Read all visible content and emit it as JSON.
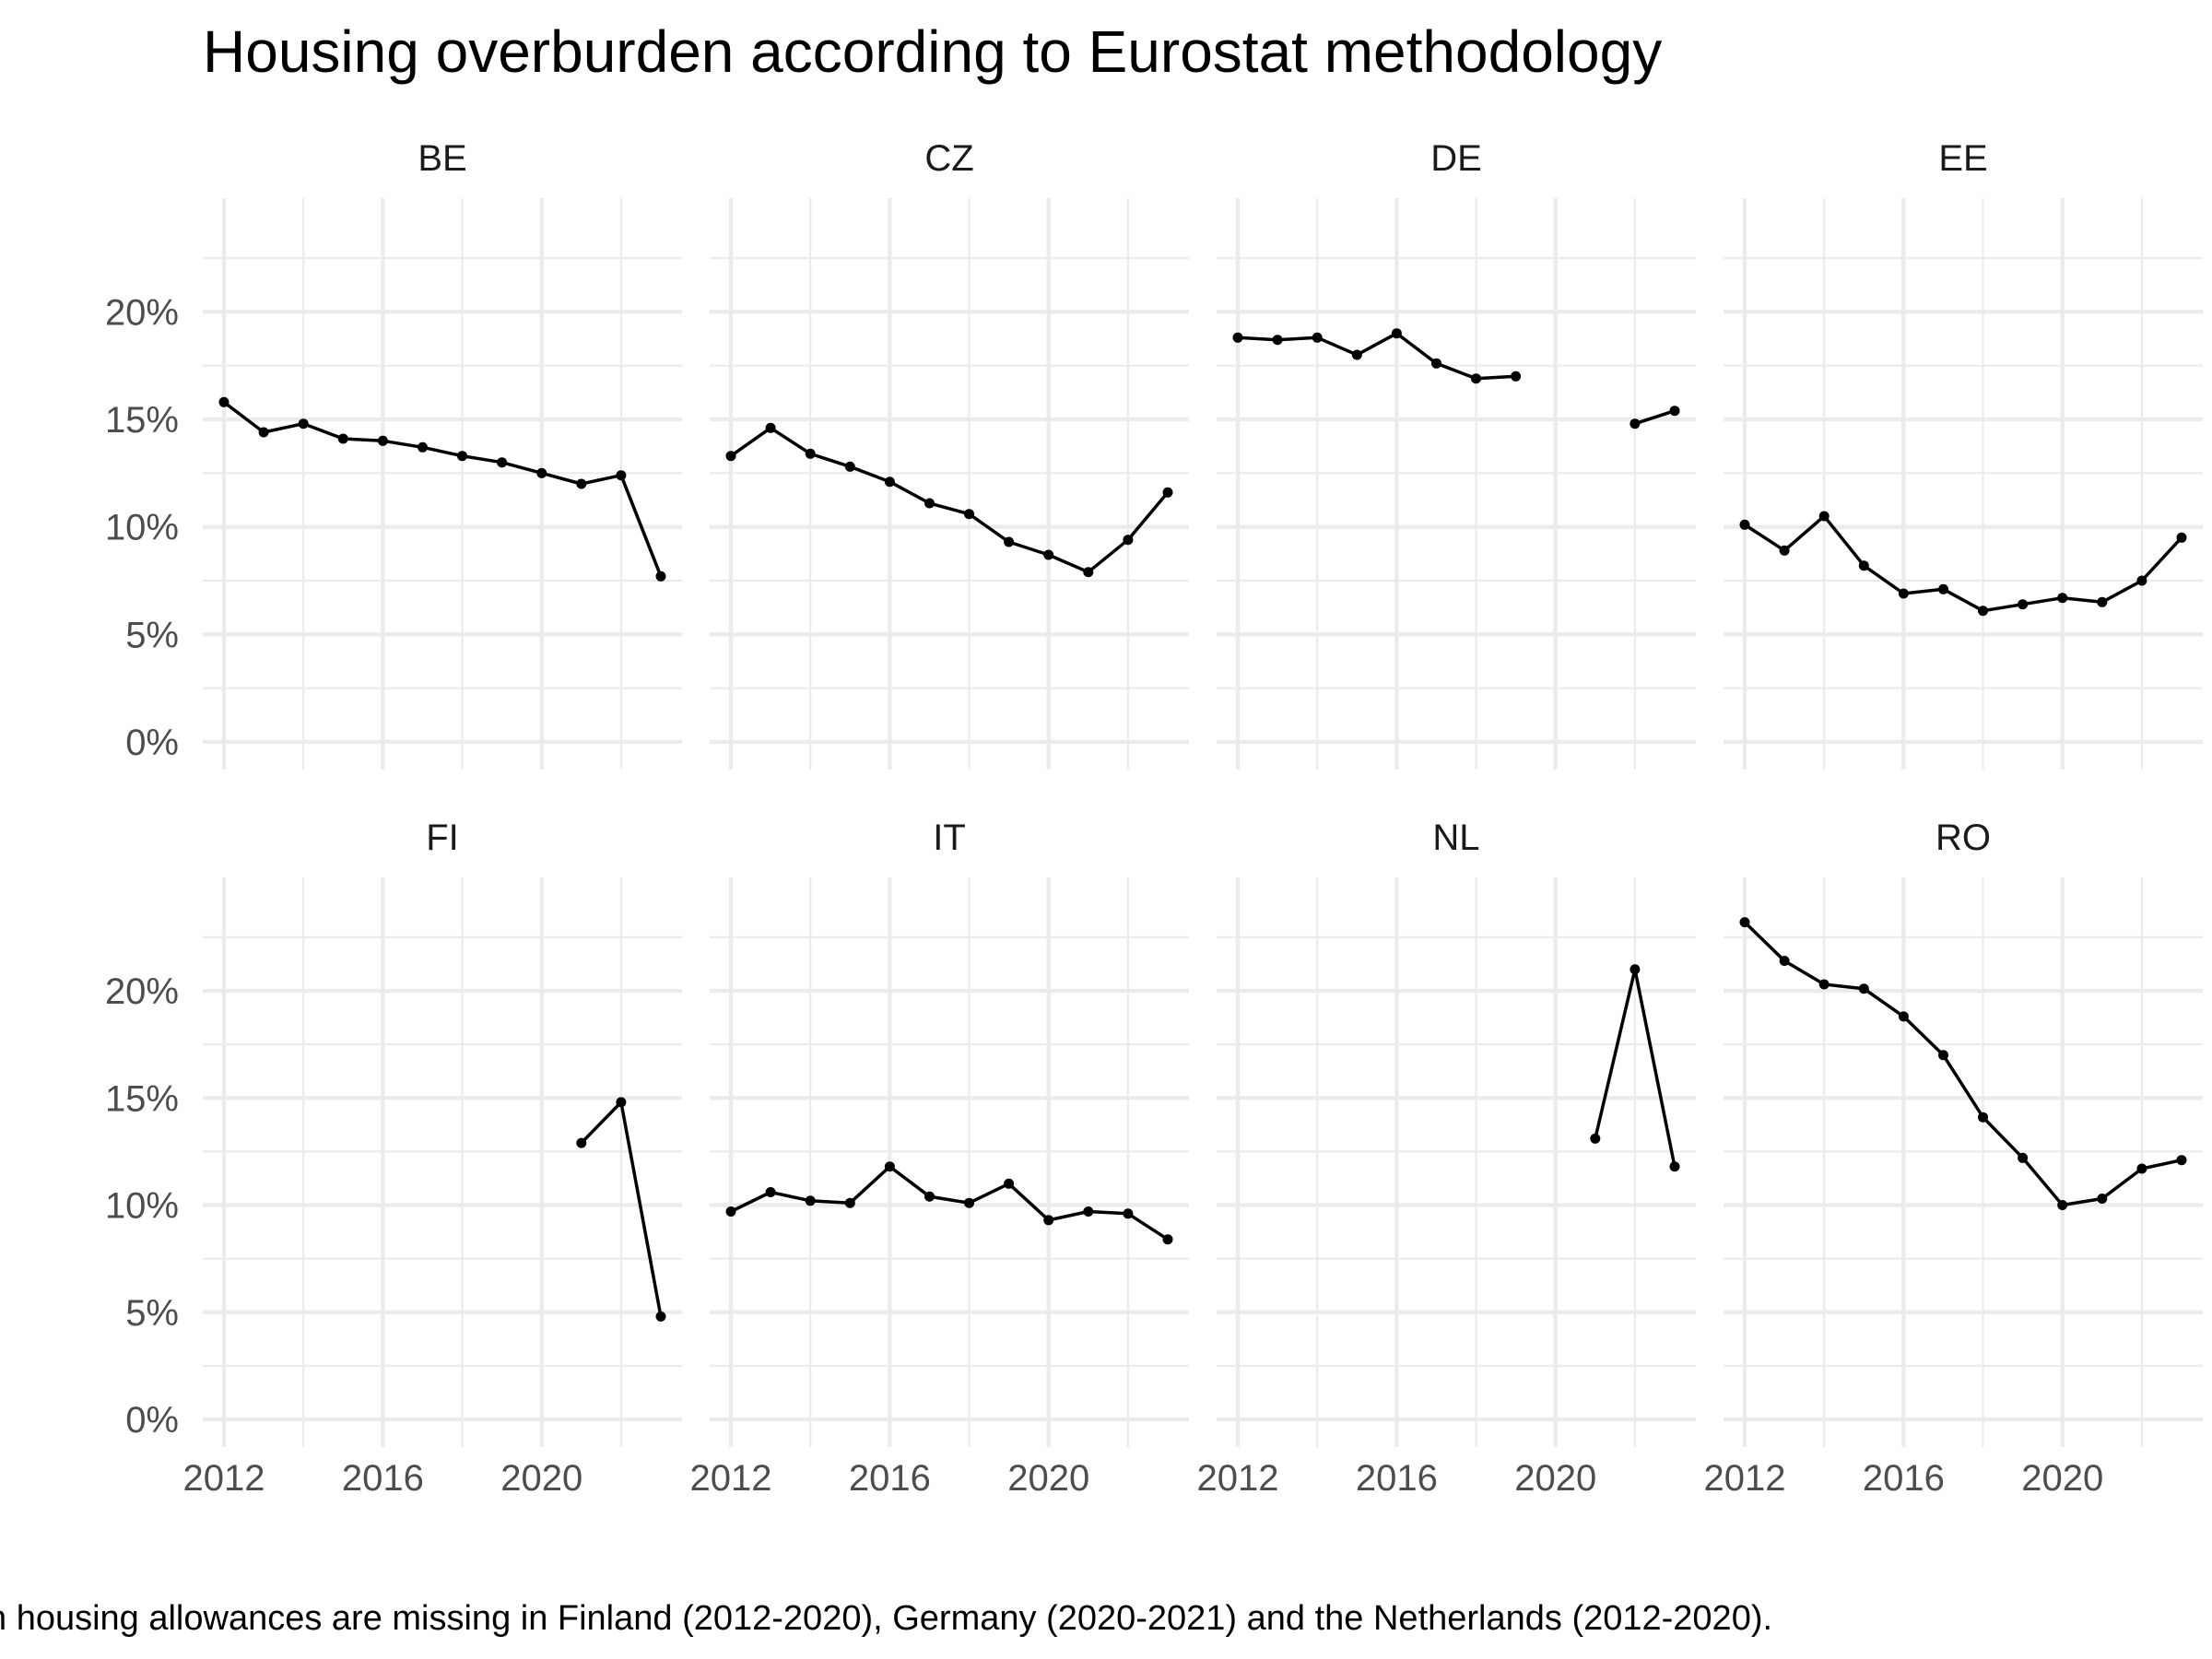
{
  "title": "Housing overburden according to Eurostat methodology",
  "caption": "n housing allowances are missing in Finland (2012-2020), Germany (2020-2021) and the Netherlands (2012-2020).",
  "colors": {
    "line": "#000000",
    "grid": "#ebebeb",
    "tick_text": "#4d4d4d"
  },
  "chart_data": {
    "type": "line",
    "layout": "facet-grid 2 rows x 4 columns, shared axes",
    "xlim": [
      2012,
      2023
    ],
    "ylim": [
      0,
      0.24
    ],
    "x_ticks": [
      2012,
      2016,
      2020
    ],
    "x_tick_labels": [
      "2012",
      "2016",
      "2020"
    ],
    "y_ticks": [
      0,
      0.05,
      0.1,
      0.15,
      0.2
    ],
    "y_tick_labels": [
      "0%",
      "5%",
      "10%",
      "15%",
      "20%"
    ],
    "grid": true,
    "panels": [
      {
        "name": "BE",
        "x": [
          2012,
          2013,
          2014,
          2015,
          2016,
          2017,
          2018,
          2019,
          2020,
          2021,
          2022,
          2023
        ],
        "y": [
          0.158,
          0.144,
          0.148,
          0.141,
          0.14,
          0.137,
          0.133,
          0.13,
          0.125,
          0.12,
          0.124,
          0.077
        ]
      },
      {
        "name": "CZ",
        "x": [
          2012,
          2013,
          2014,
          2015,
          2016,
          2017,
          2018,
          2019,
          2020,
          2021,
          2022,
          2023
        ],
        "y": [
          0.133,
          0.146,
          0.134,
          0.128,
          0.121,
          0.111,
          0.106,
          0.093,
          0.087,
          0.079,
          0.094,
          0.116
        ]
      },
      {
        "name": "DE",
        "x": [
          2012,
          2013,
          2014,
          2015,
          2016,
          2017,
          2018,
          2019,
          null,
          2022,
          2023
        ],
        "y": [
          0.188,
          0.187,
          0.188,
          0.18,
          0.19,
          0.176,
          0.169,
          0.17,
          null,
          0.148,
          0.154
        ]
      },
      {
        "name": "EE",
        "x": [
          2012,
          2013,
          2014,
          2015,
          2016,
          2017,
          2018,
          2019,
          2020,
          2021,
          2022,
          2023
        ],
        "y": [
          0.101,
          0.089,
          0.105,
          0.082,
          0.069,
          0.071,
          0.061,
          0.064,
          0.067,
          0.065,
          0.075,
          0.095
        ]
      },
      {
        "name": "FI",
        "x": [
          2021,
          2022,
          2023
        ],
        "y": [
          0.129,
          0.148,
          0.048
        ]
      },
      {
        "name": "IT",
        "x": [
          2012,
          2013,
          2014,
          2015,
          2016,
          2017,
          2018,
          2019,
          2020,
          2021,
          2022,
          2023
        ],
        "y": [
          0.097,
          0.106,
          0.102,
          0.101,
          0.118,
          0.104,
          0.101,
          0.11,
          0.093,
          0.097,
          0.096,
          0.084
        ]
      },
      {
        "name": "NL",
        "x": [
          2021,
          2022,
          2023
        ],
        "y": [
          0.131,
          0.21,
          0.118
        ]
      },
      {
        "name": "RO",
        "x": [
          2012,
          2013,
          2014,
          2015,
          2016,
          2017,
          2018,
          2019,
          2020,
          2021,
          2022,
          2023
        ],
        "y": [
          0.232,
          0.214,
          0.203,
          0.201,
          0.188,
          0.17,
          0.141,
          0.122,
          0.1,
          0.103,
          0.117,
          0.121
        ]
      }
    ]
  }
}
